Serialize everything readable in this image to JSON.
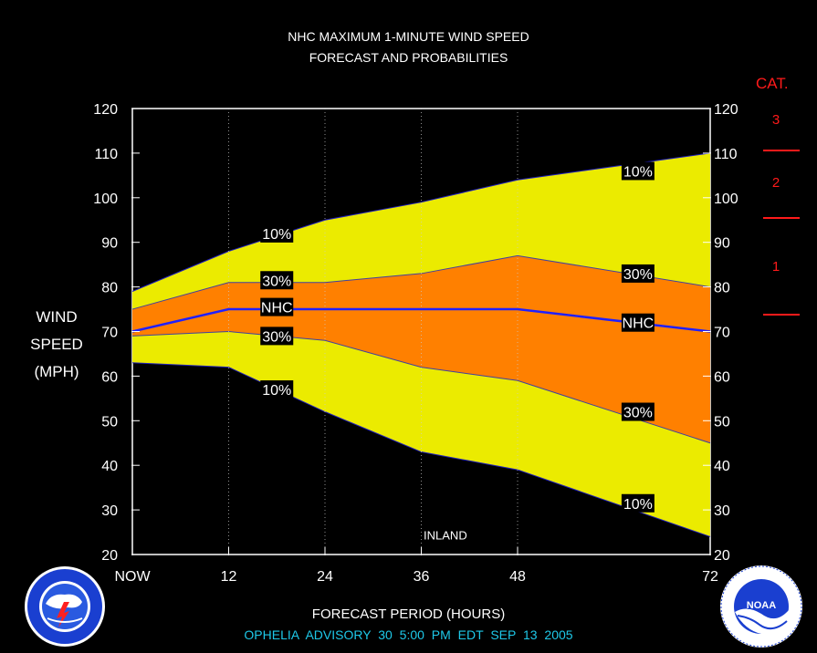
{
  "title_line1": "NHC MAXIMUM 1-MINUTE WIND SPEED",
  "title_line2": "FORECAST AND PROBABILITIES",
  "ylabel": [
    "WIND",
    "SPEED",
    "(MPH)"
  ],
  "xlabel": "FORECAST PERIOD (HOURS)",
  "advisory": "OPHELIA   ADVISORY  30  5:00  PM  EDT  SEP  13  2005",
  "category": {
    "title": "CAT.",
    "levels": [
      "3",
      "2",
      "1"
    ]
  },
  "logos": {
    "left": "NWS seal",
    "right": "NOAA seal"
  },
  "colors": {
    "background": "#000000",
    "outer_band": "#ebeb00",
    "inner_band": "#ff8000",
    "nhc_line": "#2020ff",
    "category": "#ff1a1a",
    "advisory": "#1ec8e8"
  },
  "chart_data": {
    "type": "area",
    "x": [
      0,
      12,
      24,
      36,
      48,
      72
    ],
    "x_tick_labels": [
      "NOW",
      "12",
      "24",
      "36",
      "48",
      "72"
    ],
    "ylim": [
      20,
      120
    ],
    "y_ticks": [
      20,
      30,
      40,
      50,
      60,
      70,
      80,
      90,
      100,
      110,
      120
    ],
    "grid": "vertical dotted lines at 12, 24, 36, 48",
    "series": [
      {
        "name": "10%",
        "values": [
          79,
          88,
          95,
          99,
          104,
          110
        ]
      },
      {
        "name": "30%",
        "values": [
          75,
          81,
          81,
          83,
          87,
          80
        ]
      },
      {
        "name": "NHC",
        "values": [
          70,
          75,
          75,
          75,
          75,
          70
        ]
      },
      {
        "name": "30%",
        "values": [
          69,
          70,
          68,
          62,
          59,
          45
        ]
      },
      {
        "name": "10%",
        "values": [
          63,
          62,
          52,
          43,
          39,
          24
        ]
      }
    ],
    "annotations": [
      {
        "text": "10%",
        "x": 18,
        "y": 92
      },
      {
        "text": "30%",
        "x": 18,
        "y": 81.5
      },
      {
        "text": "NHC",
        "x": 18,
        "y": 75.5
      },
      {
        "text": "30%",
        "x": 18,
        "y": 69
      },
      {
        "text": "10%",
        "x": 18,
        "y": 57
      },
      {
        "text": "10%",
        "x": 63,
        "y": 106
      },
      {
        "text": "30%",
        "x": 63,
        "y": 83
      },
      {
        "text": "NHC",
        "x": 63,
        "y": 72
      },
      {
        "text": "30%",
        "x": 63,
        "y": 52
      },
      {
        "text": "10%",
        "x": 63,
        "y": 31.5
      },
      {
        "text": "INLAND",
        "x": 39,
        "y": 23,
        "plain": true
      }
    ]
  }
}
